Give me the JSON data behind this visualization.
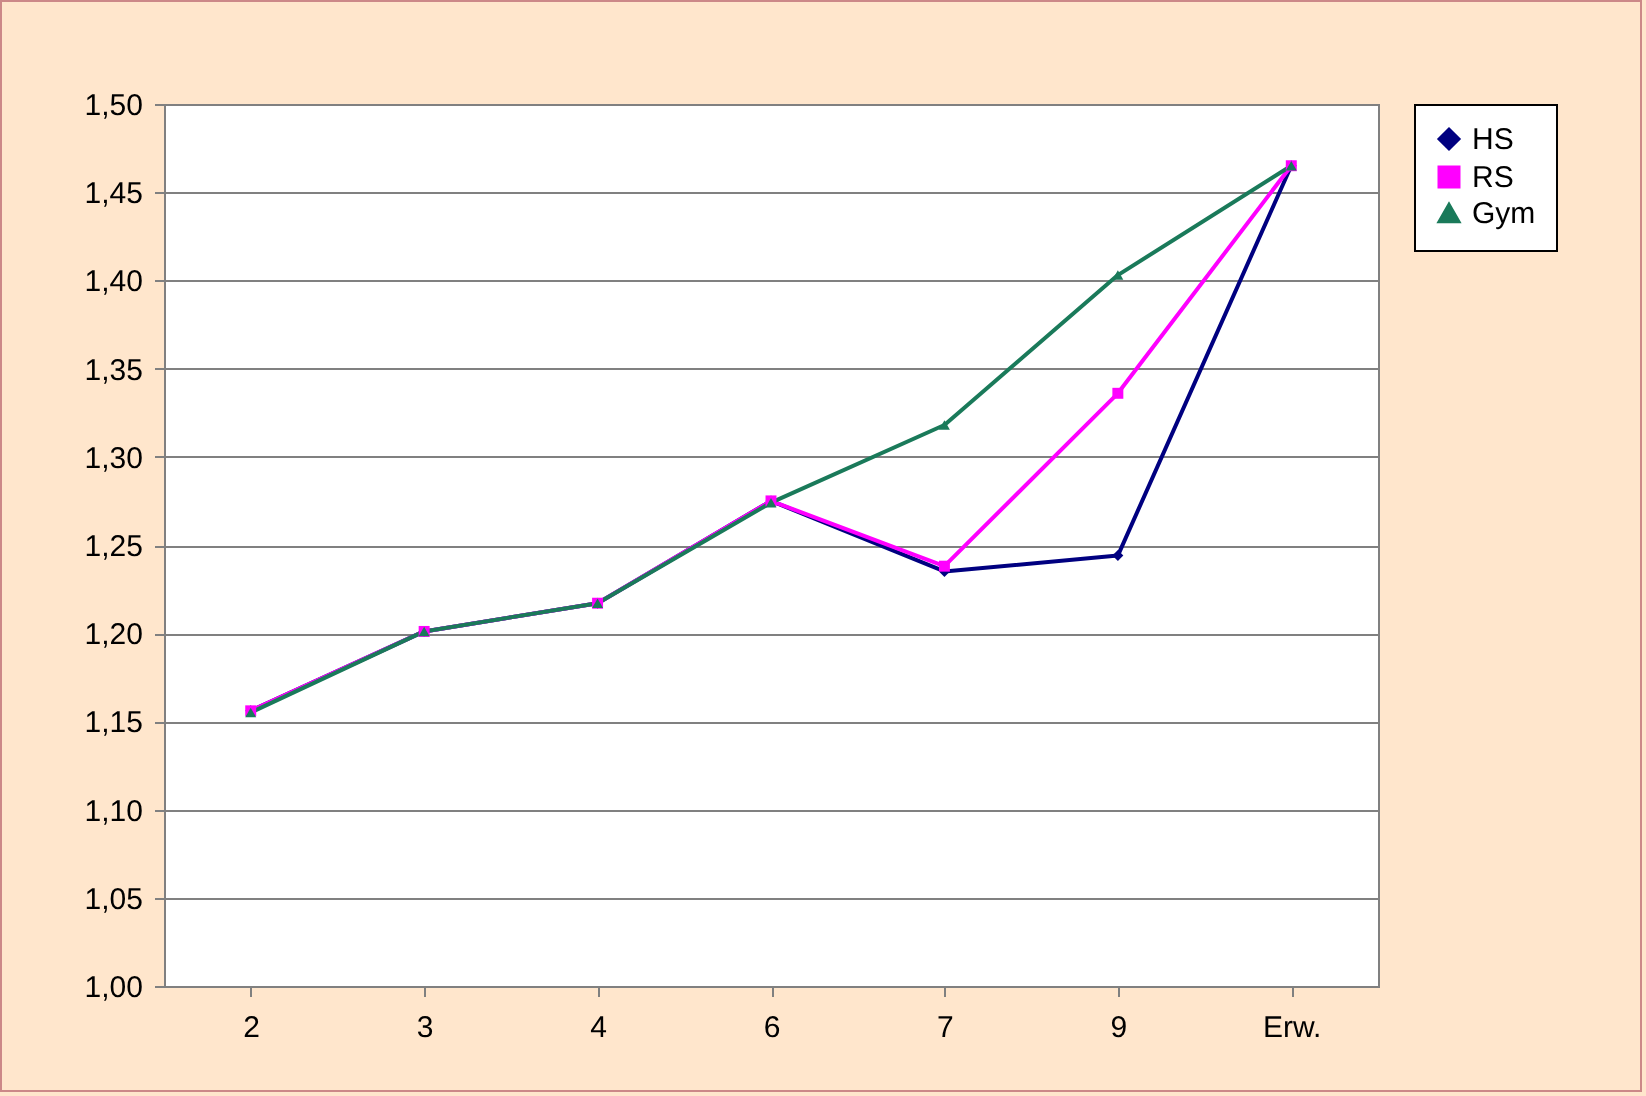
{
  "chart_data": {
    "type": "line",
    "categories": [
      "2",
      "3",
      "4",
      "6",
      "7",
      "9",
      "Erw."
    ],
    "series": [
      {
        "name": "HS",
        "color": "#000080",
        "marker": "diamond",
        "values": [
          1.156,
          1.201,
          1.217,
          1.275,
          1.235,
          1.244,
          1.465
        ]
      },
      {
        "name": "RS",
        "color": "#ff00ff",
        "marker": "square",
        "values": [
          1.156,
          1.201,
          1.217,
          1.275,
          1.238,
          1.336,
          1.465
        ]
      },
      {
        "name": "Gym",
        "color": "#1a7a5a",
        "marker": "triangle",
        "values": [
          1.155,
          1.201,
          1.217,
          1.274,
          1.318,
          1.403,
          1.465
        ]
      }
    ],
    "ylim": [
      1.0,
      1.5
    ],
    "yticks": [
      {
        "value": 1.0,
        "label": "1,00"
      },
      {
        "value": 1.05,
        "label": "1,05"
      },
      {
        "value": 1.1,
        "label": "1,10"
      },
      {
        "value": 1.15,
        "label": "1,15"
      },
      {
        "value": 1.2,
        "label": "1,20"
      },
      {
        "value": 1.25,
        "label": "1,25"
      },
      {
        "value": 1.3,
        "label": "1,30"
      },
      {
        "value": 1.35,
        "label": "1,35"
      },
      {
        "value": 1.4,
        "label": "1,40"
      },
      {
        "value": 1.45,
        "label": "1,45"
      },
      {
        "value": 1.5,
        "label": "1,50"
      }
    ],
    "grid": "y",
    "legend": "right"
  }
}
